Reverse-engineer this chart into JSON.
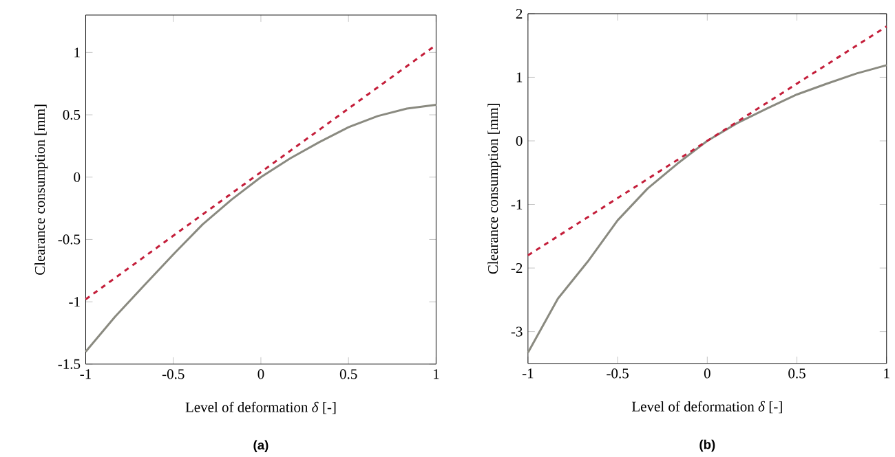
{
  "chart_data": [
    {
      "type": "line",
      "xlabel": "Level of deformation *δ* [-]",
      "ylabel": "Clearance consumption [mm]",
      "annotations": [
        "(a)"
      ],
      "xlim": [
        -1,
        1
      ],
      "ylim": [
        -1.5,
        1.3
      ],
      "xticks": [
        -1,
        -0.5,
        0,
        0.5,
        1
      ],
      "yticks": [
        -1.5,
        -1,
        -0.5,
        0,
        0.5,
        1
      ],
      "series": [
        {
          "color": "#8a8a80",
          "line_style": "solid",
          "x": [
            -1,
            -0.833,
            -0.667,
            -0.5,
            -0.333,
            -0.167,
            0,
            0.167,
            0.333,
            0.5,
            0.667,
            0.833,
            1
          ],
          "values": [
            -1.4,
            -1.12,
            -0.87,
            -0.62,
            -0.38,
            -0.18,
            0,
            0.15,
            0.28,
            0.4,
            0.49,
            0.55,
            0.58
          ]
        },
        {
          "color": "#c41e3a",
          "line_style": "dashed",
          "x": [
            -1,
            1
          ],
          "values": [
            -0.98,
            1.06
          ]
        }
      ]
    },
    {
      "type": "line",
      "xlabel": "Level of deformation *δ* [-]",
      "ylabel": "Clearance consumption [mm]",
      "annotations": [
        "(b)"
      ],
      "xlim": [
        -1,
        1
      ],
      "ylim": [
        -3.5,
        2
      ],
      "xticks": [
        -1,
        -0.5,
        0,
        0.5,
        1
      ],
      "yticks": [
        -3,
        -2,
        -1,
        0,
        1,
        2
      ],
      "series": [
        {
          "color": "#8a8a80",
          "line_style": "solid",
          "x": [
            -1,
            -0.833,
            -0.667,
            -0.5,
            -0.333,
            -0.167,
            0,
            0.167,
            0.333,
            0.5,
            0.667,
            0.833,
            1
          ],
          "values": [
            -3.33,
            -2.48,
            -1.9,
            -1.25,
            -0.75,
            -0.36,
            0,
            0.28,
            0.51,
            0.73,
            0.9,
            1.06,
            1.19
          ]
        },
        {
          "color": "#c41e3a",
          "line_style": "dashed",
          "x": [
            -1,
            1
          ],
          "values": [
            -1.8,
            1.8
          ]
        }
      ]
    }
  ]
}
